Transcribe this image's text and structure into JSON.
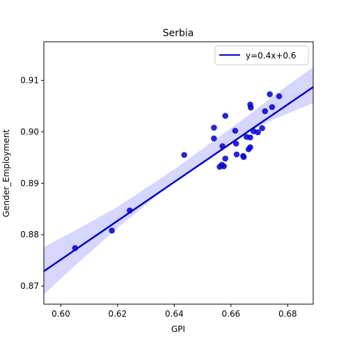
{
  "chart_data": {
    "type": "scatter",
    "title": "Serbia",
    "xlabel": "GPI",
    "ylabel": "Gender_Employment",
    "xlim": [
      0.594,
      0.689
    ],
    "ylim": [
      0.8665,
      0.9175
    ],
    "xticks": [
      0.6,
      0.62,
      0.64,
      0.66,
      0.68
    ],
    "yticks": [
      0.87,
      0.88,
      0.89,
      0.9,
      0.91
    ],
    "xtick_labels": [
      "0.60",
      "0.62",
      "0.64",
      "0.66",
      "0.68"
    ],
    "ytick_labels": [
      "0.87",
      "0.88",
      "0.89",
      "0.90",
      "0.91"
    ],
    "grid": false,
    "legend_position": "top-right",
    "series": [
      {
        "kind": "scatter",
        "color": "#0000cc",
        "points": [
          {
            "x": 0.605,
            "y": 0.8774
          },
          {
            "x": 0.618,
            "y": 0.8808
          },
          {
            "x": 0.6243,
            "y": 0.8847
          },
          {
            "x": 0.6435,
            "y": 0.8955
          },
          {
            "x": 0.654,
            "y": 0.9008
          },
          {
            "x": 0.654,
            "y": 0.8987
          },
          {
            "x": 0.656,
            "y": 0.8932
          },
          {
            "x": 0.6568,
            "y": 0.8936
          },
          {
            "x": 0.6575,
            "y": 0.8933
          },
          {
            "x": 0.657,
            "y": 0.8972
          },
          {
            "x": 0.658,
            "y": 0.9031
          },
          {
            "x": 0.658,
            "y": 0.8948
          },
          {
            "x": 0.6615,
            "y": 0.9002
          },
          {
            "x": 0.6618,
            "y": 0.8977
          },
          {
            "x": 0.662,
            "y": 0.8956
          },
          {
            "x": 0.6643,
            "y": 0.8953
          },
          {
            "x": 0.6645,
            "y": 0.8951
          },
          {
            "x": 0.6655,
            "y": 0.899
          },
          {
            "x": 0.6662,
            "y": 0.8966
          },
          {
            "x": 0.6668,
            "y": 0.897
          },
          {
            "x": 0.6668,
            "y": 0.8989
          },
          {
            "x": 0.6668,
            "y": 0.9053
          },
          {
            "x": 0.667,
            "y": 0.9047
          },
          {
            "x": 0.668,
            "y": 0.9001
          },
          {
            "x": 0.6695,
            "y": 0.8999
          },
          {
            "x": 0.671,
            "y": 0.9007
          },
          {
            "x": 0.672,
            "y": 0.904
          },
          {
            "x": 0.6737,
            "y": 0.9073
          },
          {
            "x": 0.6745,
            "y": 0.9048
          },
          {
            "x": 0.677,
            "y": 0.9069
          }
        ]
      },
      {
        "kind": "line",
        "name": "y=0.4x+0.6",
        "color": "#0000cc",
        "x": [
          0.594,
          0.689
        ],
        "y": [
          0.8729,
          0.9087
        ]
      }
    ],
    "confidence_band": {
      "color": "#ccccff",
      "x": [
        0.594,
        0.605,
        0.62,
        0.64,
        0.655,
        0.665,
        0.675,
        0.689
      ],
      "lower": [
        0.8684,
        0.874,
        0.8813,
        0.8904,
        0.8961,
        0.8996,
        0.9024,
        0.9056
      ],
      "upper": [
        0.8776,
        0.8808,
        0.8854,
        0.8927,
        0.8987,
        0.9027,
        0.907,
        0.9126
      ]
    }
  }
}
